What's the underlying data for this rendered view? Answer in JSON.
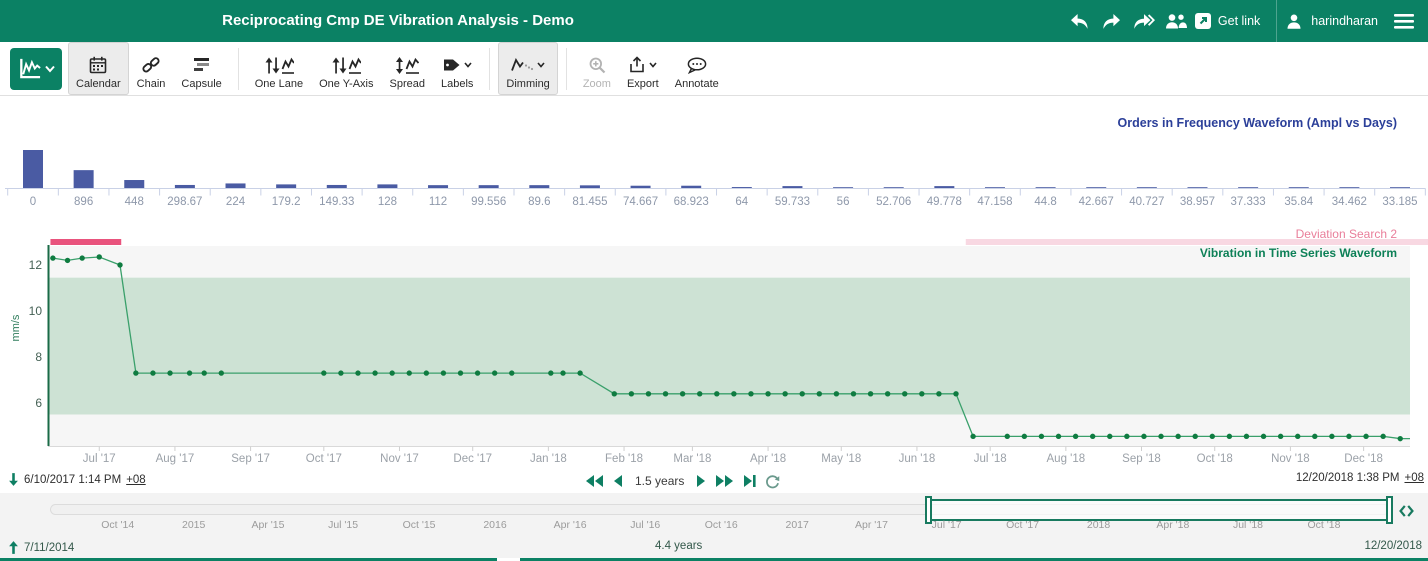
{
  "header": {
    "title": "Reciprocating Cmp DE Vibration Analysis - Demo",
    "get_link_label": "Get link",
    "username": "harindharan"
  },
  "toolbar": {
    "buttons": [
      {
        "label": "Calendar",
        "active": true
      },
      {
        "label": "Chain",
        "active": false
      },
      {
        "label": "Capsule",
        "active": false
      },
      {
        "label": "One Lane",
        "active": false
      },
      {
        "label": "One Y-Axis",
        "active": false
      },
      {
        "label": "Spread",
        "active": false
      },
      {
        "label": "Labels",
        "active": false
      },
      {
        "label": "Dimming",
        "active": true
      },
      {
        "label": "Zoom",
        "active": false,
        "disabled": true
      },
      {
        "label": "Export",
        "active": false
      },
      {
        "label": "Annotate",
        "active": false
      }
    ]
  },
  "chart_data": [
    {
      "type": "bar",
      "title": "Orders in Frequency Waveform (Ampl vs Days)",
      "xlabel": "Days",
      "ylabel": "Ampl",
      "bar_color": "#4a5ba3",
      "categories": [
        "0",
        "896",
        "448",
        "298.67",
        "224",
        "179.2",
        "149.33",
        "128",
        "112",
        "99.556",
        "89.6",
        "81.455",
        "74.667",
        "68.923",
        "64",
        "59.733",
        "56",
        "52.706",
        "49.778",
        "47.158",
        "44.8",
        "42.667",
        "40.727",
        "38.957",
        "37.333",
        "35.84",
        "34.462",
        "33.185"
      ],
      "values": [
        1.0,
        0.47,
        0.21,
        0.08,
        0.12,
        0.095,
        0.08,
        0.095,
        0.075,
        0.075,
        0.075,
        0.07,
        0.06,
        0.06,
        0.025,
        0.05,
        0.012,
        0.012,
        0.05,
        0.012,
        0.01,
        0.01,
        0.008,
        0.008,
        0.006,
        0.006,
        0.005,
        0.005
      ]
    },
    {
      "type": "line",
      "title": "Vibration in Time Series Waveform",
      "ylabel": "mm/s",
      "yticks": [
        6,
        8,
        10,
        12
      ],
      "ylim": [
        4.1,
        12.85
      ],
      "band": {
        "low": 5.5,
        "high": 11.45
      },
      "range_start": "6/10/2017 1:14 PM",
      "range_end": "12/20/2018 1:38 PM",
      "range_days": 558,
      "line_color": "#3aa06b",
      "dot_color": "#0f7c41",
      "condition": {
        "name": "Deviation Search 2",
        "capsules": [
          {
            "start_day": 1,
            "end_day": 30,
            "color": "#e9537d"
          },
          {
            "start_day": 376,
            "end_day": 566,
            "color": "#f8d8e2"
          }
        ]
      },
      "x_months": [
        {
          "label": "Jul '17",
          "day": 21
        },
        {
          "label": "Aug '17",
          "day": 52
        },
        {
          "label": "Sep '17",
          "day": 83
        },
        {
          "label": "Oct '17",
          "day": 113
        },
        {
          "label": "Nov '17",
          "day": 144
        },
        {
          "label": "Dec '17",
          "day": 174
        },
        {
          "label": "Jan '18",
          "day": 205
        },
        {
          "label": "Feb '18",
          "day": 236
        },
        {
          "label": "Mar '18",
          "day": 264
        },
        {
          "label": "Apr '18",
          "day": 295
        },
        {
          "label": "May '18",
          "day": 325
        },
        {
          "label": "Jun '18",
          "day": 356
        },
        {
          "label": "Jul '18",
          "day": 386
        },
        {
          "label": "Aug '18",
          "day": 417
        },
        {
          "label": "Sep '18",
          "day": 448
        },
        {
          "label": "Oct '18",
          "day": 478
        },
        {
          "label": "Nov '18",
          "day": 509
        },
        {
          "label": "Dec '18",
          "day": 539
        }
      ],
      "points": [
        [
          2,
          12.3
        ],
        [
          8,
          12.2
        ],
        [
          14,
          12.3
        ],
        [
          21,
          12.35
        ],
        [
          29.5,
          12.0
        ],
        [
          36,
          7.3
        ],
        [
          43,
          7.3
        ],
        [
          50,
          7.3
        ],
        [
          58,
          7.3
        ],
        [
          64,
          7.3
        ],
        [
          71,
          7.3
        ],
        [
          113,
          7.3
        ],
        [
          120,
          7.3
        ],
        [
          127,
          7.3
        ],
        [
          134,
          7.3
        ],
        [
          141,
          7.3
        ],
        [
          148,
          7.3
        ],
        [
          155,
          7.3
        ],
        [
          162,
          7.3
        ],
        [
          169,
          7.3
        ],
        [
          176,
          7.3
        ],
        [
          183,
          7.3
        ],
        [
          190,
          7.3
        ],
        [
          206,
          7.3
        ],
        [
          211,
          7.3
        ],
        [
          218,
          7.3
        ],
        [
          232,
          6.4
        ],
        [
          239,
          6.4
        ],
        [
          246,
          6.4
        ],
        [
          253,
          6.4
        ],
        [
          260,
          6.4
        ],
        [
          267,
          6.4
        ],
        [
          274,
          6.4
        ],
        [
          281,
          6.4
        ],
        [
          288,
          6.4
        ],
        [
          295,
          6.4
        ],
        [
          302,
          6.4
        ],
        [
          309,
          6.4
        ],
        [
          316,
          6.4
        ],
        [
          323,
          6.4
        ],
        [
          330,
          6.4
        ],
        [
          337,
          6.4
        ],
        [
          344,
          6.4
        ],
        [
          351,
          6.4
        ],
        [
          358,
          6.4
        ],
        [
          365,
          6.4
        ],
        [
          372,
          6.4
        ],
        [
          379,
          4.55
        ],
        [
          393,
          4.55
        ],
        [
          400,
          4.55
        ],
        [
          407,
          4.55
        ],
        [
          414,
          4.55
        ],
        [
          421,
          4.55
        ],
        [
          428,
          4.55
        ],
        [
          435,
          4.55
        ],
        [
          442,
          4.55
        ],
        [
          449,
          4.55
        ],
        [
          456,
          4.55
        ],
        [
          463,
          4.55
        ],
        [
          470,
          4.55
        ],
        [
          477,
          4.55
        ],
        [
          484,
          4.55
        ],
        [
          491,
          4.55
        ],
        [
          498,
          4.55
        ],
        [
          505,
          4.55
        ],
        [
          512,
          4.55
        ],
        [
          519,
          4.55
        ],
        [
          526,
          4.55
        ],
        [
          533,
          4.55
        ],
        [
          540,
          4.55
        ],
        [
          547,
          4.55
        ],
        [
          554,
          4.45
        ],
        [
          558,
          4.45
        ]
      ]
    }
  ],
  "footer": {
    "range_start": "6/10/2017 1:14 PM",
    "range_start_tz": "+08",
    "range_end": "12/20/2018 1:38 PM",
    "range_end_tz": "+08",
    "duration_label": "1.5 years",
    "timeline": {
      "start": "7/11/2014",
      "end": "12/20/2018",
      "span_label": "4.4 years",
      "total_days": 1623,
      "selection_start_day": 1065,
      "selection_end_day": 1623,
      "labels": [
        {
          "label": "Oct '14",
          "day": 82
        },
        {
          "label": "2015",
          "day": 174
        },
        {
          "label": "Apr '15",
          "day": 264
        },
        {
          "label": "Jul '15",
          "day": 355
        },
        {
          "label": "Oct '15",
          "day": 447
        },
        {
          "label": "2016",
          "day": 539
        },
        {
          "label": "Apr '16",
          "day": 630
        },
        {
          "label": "Jul '16",
          "day": 721
        },
        {
          "label": "Oct '16",
          "day": 813
        },
        {
          "label": "2017",
          "day": 905
        },
        {
          "label": "Apr '17",
          "day": 995
        },
        {
          "label": "Jul '17",
          "day": 1086
        },
        {
          "label": "Oct '17",
          "day": 1178
        },
        {
          "label": "2018",
          "day": 1270
        },
        {
          "label": "Apr '18",
          "day": 1360
        },
        {
          "label": "Jul '18",
          "day": 1451
        },
        {
          "label": "Oct '18",
          "day": 1543
        }
      ]
    }
  }
}
